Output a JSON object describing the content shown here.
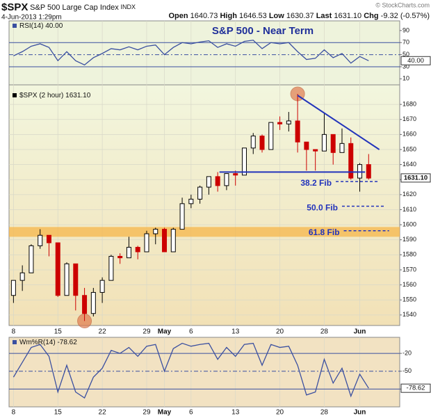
{
  "header": {
    "symbol": "$SPX",
    "name": "S&P 500 Large Cap Index",
    "exchange": "INDX",
    "date": "4-Jun-2013 1:29pm",
    "watermark": "© StockCharts.com",
    "quote": [
      {
        "label": "Open",
        "value": 1640.73
      },
      {
        "label": "High",
        "value": 1646.53
      },
      {
        "label": "Low",
        "value": 1630.37
      },
      {
        "label": "Last",
        "value": {
          "value": 1631.1,
          "label": "1631.10"
        }
      },
      {
        "label": "Chg",
        "value": -9.32,
        "pct": {
          "value": -0.57,
          "label": "(-0.57%)"
        }
      }
    ]
  },
  "chart_data": [
    {
      "type": "line",
      "name": "RSI(14)",
      "last": {
        "value": 40,
        "label": "40.00"
      },
      "color": "#3a4fa0",
      "values": [
        48,
        55,
        64,
        68,
        62,
        40,
        55,
        40,
        33,
        45,
        52,
        60,
        58,
        63,
        58,
        64,
        66,
        50,
        62,
        70,
        68,
        71,
        73,
        62,
        68,
        64,
        72,
        74,
        60,
        70,
        68,
        70,
        55,
        42,
        44,
        58,
        45,
        52,
        36,
        47,
        40
      ],
      "ylim": [
        0,
        106
      ],
      "yticks": [
        90,
        70,
        50,
        30,
        10
      ],
      "ref_lines": [
        70,
        30
      ],
      "dashed_lines": [
        50
      ],
      "title": "S&P 500 - Near Term"
    },
    {
      "type": "candlestick",
      "name": "$SPX (2 hour)",
      "last": {
        "value": 1631.1,
        "label": "1631.10"
      },
      "up_color": "#000000",
      "down_color": "#cc0000",
      "categories": [
        "8",
        null,
        null,
        null,
        null,
        "15",
        null,
        null,
        null,
        null,
        "22",
        null,
        null,
        null,
        null,
        "29",
        null,
        "May",
        null,
        null,
        "6",
        null,
        null,
        null,
        null,
        "13",
        null,
        null,
        null,
        null,
        "20",
        null,
        null,
        null,
        null,
        "28",
        null,
        null,
        null,
        "Jun",
        null
      ],
      "xlim": [
        -0.5,
        43.5
      ],
      "open": [
        1553,
        1563,
        1568,
        1586,
        1593,
        1588,
        1553,
        1574,
        1553,
        1541,
        1555,
        1563,
        1579,
        1578,
        1585,
        1582,
        1594,
        1597,
        1582,
        1597,
        1614,
        1617,
        1625,
        1632,
        1626,
        1634,
        1633,
        1651,
        1659,
        1650,
        1668,
        1667,
        1669,
        1655,
        1650,
        1649,
        1660,
        1648,
        1654,
        1631,
        1640
      ],
      "high": [
        1563,
        1573,
        1587,
        1597,
        1593,
        1588,
        1575,
        1574,
        1558,
        1558,
        1565,
        1580,
        1581,
        1592,
        1586,
        1596,
        1598,
        1598,
        1598,
        1618,
        1620,
        1626,
        1632,
        1635,
        1634,
        1636,
        1651,
        1661,
        1660,
        1668,
        1672,
        1675,
        1687,
        1655,
        1650,
        1674,
        1660,
        1664,
        1658,
        1641,
        1647
      ],
      "low": [
        1548,
        1556,
        1568,
        1584,
        1579,
        1552,
        1553,
        1543,
        1536,
        1539,
        1548,
        1563,
        1574,
        1578,
        1577,
        1582,
        1587,
        1582,
        1582,
        1597,
        1611,
        1614,
        1620,
        1622,
        1623,
        1626,
        1633,
        1647,
        1648,
        1650,
        1663,
        1662,
        1648,
        1636,
        1636,
        1649,
        1640,
        1648,
        1630,
        1622,
        1630
      ],
      "close": [
        1563,
        1568,
        1586,
        1593,
        1588,
        1553,
        1574,
        1553,
        1541,
        1555,
        1563,
        1579,
        1578,
        1585,
        1582,
        1594,
        1597,
        1582,
        1597,
        1614,
        1617,
        1625,
        1632,
        1626,
        1634,
        1633,
        1651,
        1659,
        1650,
        1668,
        1667,
        1669,
        1655,
        1650,
        1649,
        1660,
        1648,
        1654,
        1631,
        1640,
        1631
      ],
      "ylim": [
        1533,
        1693
      ],
      "yticks": [
        1540,
        1550,
        1560,
        1570,
        1580,
        1590,
        1600,
        1610,
        1620,
        1630,
        1640,
        1650,
        1660,
        1670,
        1680
      ],
      "grid": true,
      "annotations": {
        "color": "#2233bb",
        "band": [
          1592,
          1598.5
        ],
        "band_color": "#f5b54a",
        "circle_color": "#e07b4f",
        "circles": [
          {
            "x": 32,
            "y": 1687
          },
          {
            "x": 8,
            "y": 1536
          }
        ],
        "trendline": {
          "x": [
            32,
            41.2
          ],
          "y": [
            1686,
            1650
          ]
        },
        "support": {
          "x": [
            23.2,
            39.6
          ],
          "y": [
            1635,
            1635
          ]
        },
        "fibs": [
          {
            "label": "38.2 Fib",
            "value": 1628.7,
            "x": [
              36.3,
              41.2
            ]
          },
          {
            "label": "50.0 Fib",
            "value": 1612.3,
            "x": [
              37,
              41.9
            ]
          },
          {
            "label": "61.8 Fib",
            "value": 1596,
            "x": [
              37.2,
              42.3
            ]
          }
        ]
      }
    },
    {
      "type": "line",
      "name": "Wm%R(14)",
      "last": -78.62,
      "color": "#3a4fa0",
      "values": [
        -60,
        -35,
        -10,
        -5,
        -25,
        -85,
        -40,
        -85,
        -95,
        -60,
        -45,
        -15,
        -20,
        -10,
        -25,
        -8,
        -5,
        -50,
        -12,
        -3,
        -8,
        -5,
        -3,
        -30,
        -10,
        -25,
        -5,
        -3,
        -40,
        -5,
        -10,
        -8,
        -40,
        -90,
        -85,
        -30,
        -70,
        -45,
        -92,
        -55,
        -78.62
      ],
      "ylim": [
        -110,
        7
      ],
      "yticks": [
        -20,
        -50,
        -80
      ],
      "ref_lines": [
        -20,
        -80
      ],
      "dashed_lines": [
        -50
      ]
    }
  ]
}
